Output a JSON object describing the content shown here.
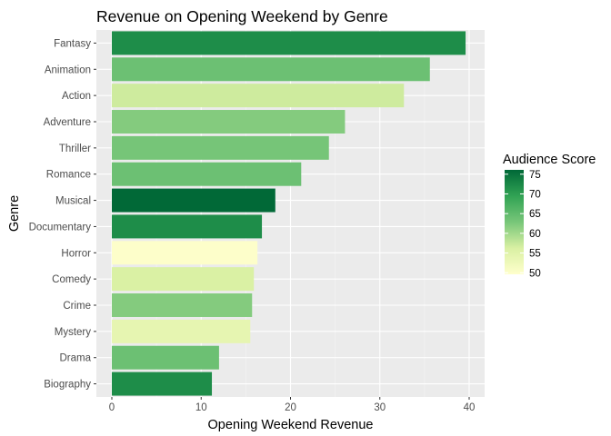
{
  "chart_data": {
    "type": "bar",
    "orientation": "horizontal",
    "title": "Revenue on Opening Weekend by Genre",
    "xlabel": "Opening Weekend Revenue",
    "ylabel": "Genre",
    "xlim": [
      0,
      41
    ],
    "x_ticks": [
      0,
      10,
      20,
      30,
      40
    ],
    "grid": true,
    "legend_position": "right",
    "color_scale": {
      "title": "Audience Score",
      "min": 49.6,
      "max": 76.1,
      "ticks": [
        50,
        55,
        60,
        65,
        70,
        75
      ],
      "low_color": "#ffffcc",
      "high_color": "#006837"
    },
    "categories": [
      "Fantasy",
      "Animation",
      "Action",
      "Adventure",
      "Thriller",
      "Romance",
      "Musical",
      "Documentary",
      "Horror",
      "Comedy",
      "Crime",
      "Mystery",
      "Drama",
      "Biography"
    ],
    "values": [
      39.6,
      35.6,
      32.7,
      26.1,
      24.3,
      21.2,
      18.3,
      16.8,
      16.3,
      15.9,
      15.7,
      15.5,
      12.0,
      11.2
    ],
    "audience_score": [
      72,
      64,
      57,
      62,
      63,
      64,
      76,
      72,
      50,
      56,
      62,
      54,
      64,
      72
    ]
  }
}
